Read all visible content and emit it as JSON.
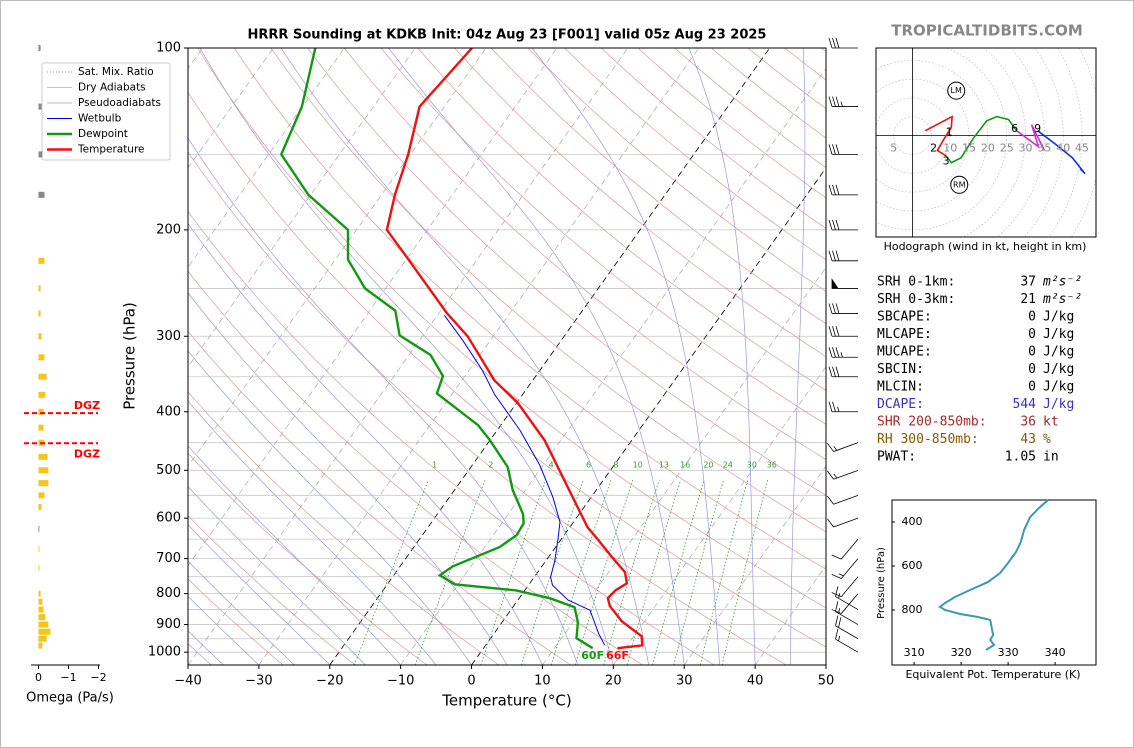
{
  "watermark": "TROPICALTIDBITS.COM",
  "stats": [
    {
      "label": "SRH 0-1km:",
      "value": 37,
      "unit": "m²s⁻²",
      "color": "#000000"
    },
    {
      "label": "SRH 0-3km:",
      "value": 21,
      "unit": "m²s⁻²",
      "color": "#000000"
    },
    {
      "label": "SBCAPE:",
      "value": 0,
      "unit": "J/kg",
      "color": "#000000"
    },
    {
      "label": "MLCAPE:",
      "value": 0,
      "unit": "J/kg",
      "color": "#000000"
    },
    {
      "label": "MUCAPE:",
      "value": 0,
      "unit": "J/kg",
      "color": "#000000"
    },
    {
      "label": "SBCIN:",
      "value": 0,
      "unit": "J/kg",
      "color": "#000000"
    },
    {
      "label": "MLCIN:",
      "value": 0,
      "unit": "J/kg",
      "color": "#000000"
    },
    {
      "label": "DCAPE:",
      "value": 544,
      "unit": "J/kg",
      "color": "#3333cc"
    },
    {
      "label": "SHR 200-850mb:",
      "value": 36,
      "unit": "kt",
      "color": "#a52a2a"
    },
    {
      "label": "RH 300-850mb:",
      "value": 43,
      "unit": "%",
      "color": "#8b5a00"
    },
    {
      "label": "PWAT:",
      "value": 1.05,
      "unit": "in",
      "color": "#000000"
    }
  ],
  "chart_data": [
    {
      "type": "skewt",
      "title": "HRRR Sounding at KDKB Init: 04z Aug 23 [F001] valid 05z Aug 23 2025",
      "xlabel": "Temperature (°C)",
      "ylabel": "Pressure (hPa)",
      "xlim": [
        -40,
        50
      ],
      "ylim": [
        1050,
        100
      ],
      "log_y": true,
      "legend": "upper left",
      "xticks": [
        {
          "value": -40,
          "label": "−40"
        },
        {
          "value": -30,
          "label": "−30"
        },
        {
          "value": -20,
          "label": "−20"
        },
        {
          "value": -10,
          "label": "−10"
        },
        0,
        10,
        20,
        30,
        40,
        50
      ],
      "yticks": [
        100,
        200,
        300,
        400,
        500,
        600,
        700,
        800,
        900,
        1000
      ],
      "y_minor_ticks": [
        150,
        250,
        350,
        450,
        550,
        650,
        750,
        850,
        950
      ],
      "highlighted_isotherms": [
        -20,
        0
      ],
      "reference_lines": [
        {
          "name": "Sat. Mix. Ratio",
          "color": "#3a9a3a",
          "values": [
            1,
            2,
            4,
            6,
            8,
            10,
            13,
            16,
            20,
            24,
            30,
            36
          ]
        },
        {
          "name": "Dry Adiabats",
          "color": "#d99a9a"
        },
        {
          "name": "Pseudoadiabats",
          "color": "#9a9ad9"
        }
      ],
      "series": [
        {
          "name": "Wetbulb",
          "color": "#0000ee",
          "pressure": [
            974,
            930,
            852,
            820,
            775,
            751,
            704,
            652,
            609,
            554,
            490,
            429,
            375,
            341,
            304,
            277
          ],
          "values": [
            16.8,
            14.7,
            11.2,
            7.1,
            3.4,
            2.3,
            1.2,
            -0.4,
            -1.9,
            -5.4,
            -10.5,
            -16.8,
            -23.9,
            -28.2,
            -34.0,
            -39.0
          ]
        },
        {
          "name": "Dewpoint",
          "color": "#119911",
          "surface_label": "60F",
          "pressure": [
            985,
            948,
            892,
            842,
            814,
            790,
            772,
            746,
            721,
            670,
            640,
            612,
            591,
            539,
            494,
            446,
            421,
            373,
            349,
            322,
            299,
            272,
            250,
            224,
            200,
            175,
            150,
            125,
            100
          ],
          "values": [
            15.4,
            12.1,
            10.7,
            8.7,
            4.3,
            -1.3,
            -10.5,
            -13.5,
            -12.6,
            -7.9,
            -6.7,
            -6.9,
            -7.9,
            -11.8,
            -14.8,
            -20.0,
            -23.2,
            -32.2,
            -33.1,
            -37.0,
            -43.3,
            -46.4,
            -52.9,
            -58.2,
            -61.2,
            -70.3,
            -78.2,
            -80.1,
            -84.1
          ]
        },
        {
          "name": "Temperature",
          "color": "#ee1111",
          "surface_label": "66F",
          "pressure": [
            985,
            974,
            941,
            889,
            839,
            814,
            790,
            769,
            737,
            699,
            652,
            621,
            446,
            387,
            355,
            329,
            300,
            274,
            223,
            200,
            175,
            150,
            125,
            100
          ],
          "values": [
            18.9,
            22.1,
            21.1,
            16.8,
            13.6,
            12.5,
            12.8,
            13.7,
            12.3,
            9.2,
            5.3,
            2.5,
            -12.3,
            -19.8,
            -25.4,
            -29.1,
            -33.6,
            -39.0,
            -49.9,
            -55.7,
            -58.1,
            -60.3,
            -63.5,
            -62.0
          ]
        }
      ],
      "wind_barbs": {
        "pressure": [
          100,
          125,
          150,
          175,
          200,
          225,
          250,
          275,
          300,
          325,
          350,
          400,
          450,
          500,
          550,
          600,
          650,
          700,
          750,
          800,
          850,
          900,
          950,
          1000
        ],
        "speed": [
          30,
          35,
          30,
          30,
          30,
          30,
          50,
          30,
          30,
          35,
          30,
          25,
          15,
          15,
          10,
          10,
          10,
          15,
          10,
          10,
          15,
          15,
          20,
          15
        ],
        "direction": [
          270,
          270,
          270,
          270,
          270,
          270,
          270,
          270,
          270,
          270,
          270,
          270,
          250,
          250,
          250,
          250,
          220,
          220,
          220,
          220,
          300,
          300,
          300,
          300
        ]
      }
    },
    {
      "type": "hbar",
      "xlabel": "Omega (Pa/s)",
      "xlim": [
        0.25,
        -2.05
      ],
      "ylim": [
        1050,
        100
      ],
      "xticks": [
        0,
        {
          "value": -1,
          "label": "−1"
        },
        {
          "value": -2,
          "label": "−2"
        }
      ],
      "pressure": [
        100,
        125,
        150,
        175,
        225,
        250,
        275,
        300,
        325,
        350,
        375,
        400,
        425,
        450,
        475,
        500,
        525,
        550,
        575,
        625,
        675,
        725,
        800,
        825,
        850,
        875,
        900,
        925,
        950,
        975
      ],
      "values": [
        -0.07,
        -0.1,
        -0.13,
        -0.2,
        -0.2,
        -0.07,
        -0.07,
        -0.1,
        -0.2,
        -0.27,
        -0.23,
        -0.17,
        -0.17,
        -0.2,
        -0.3,
        -0.33,
        -0.33,
        -0.2,
        -0.1,
        -0.03,
        -0.03,
        -0.03,
        -0.07,
        -0.13,
        -0.17,
        -0.23,
        -0.33,
        -0.4,
        -0.27,
        -0.13
      ],
      "colors": [
        "#888888",
        "#888888",
        "#888888",
        "#888888",
        "#f5c518",
        "#f5c518",
        "#f5c518",
        "#f5c518",
        "#f5c518",
        "#f5c518",
        "#f5c518",
        "#f5c518",
        "#f5c518",
        "#f5c518",
        "#f5c518",
        "#f5c518",
        "#f5c518",
        "#f5c518",
        "#f5c518",
        "#888888",
        "#f5c518",
        "#f5c518",
        "#f5c518",
        "#f5c518",
        "#f5c518",
        "#f5c518",
        "#f5c518",
        "#f5c518",
        "#f5c518",
        "#f5c518"
      ],
      "dgz": {
        "pressure": [
          402,
          451
        ],
        "labels": [
          "DGZ",
          "DGZ"
        ],
        "color": "#ff0000"
      }
    },
    {
      "type": "hodograph",
      "caption": "Hodograph (wind in kt, height in km)",
      "xlim": [
        -9.7,
        48.7
      ],
      "ylim": [
        -26.6,
        23
      ],
      "rings": [
        5,
        10,
        15,
        20,
        25,
        30,
        35,
        40,
        45
      ],
      "segments": [
        {
          "color": "#ee1111",
          "u": [
            3.4,
            10.5,
            10.3,
            8.4,
            6.6,
            8.9
          ],
          "v": [
            1.3,
            5.0,
            2.1,
            -0.8,
            -3.9,
            -5.3
          ]
        },
        {
          "color": "#119911",
          "u": [
            8.9,
            10.3,
            12.9,
            16.3,
            19.7,
            22.4,
            25.5,
            27.6
          ],
          "v": [
            -5.3,
            -7.1,
            -5.8,
            -0.5,
            3.9,
            5.0,
            4.2,
            1.3
          ]
        },
        {
          "color": "#cc33cc",
          "u": [
            27.6,
            33.4,
            31.6,
            35.0
          ],
          "v": [
            1.3,
            -2.9,
            2.9,
            -3.9
          ]
        },
        {
          "color": "#1133ee",
          "u": [
            33.2,
            38.4,
            42.4,
            45.8,
            44.5
          ],
          "v": [
            1.3,
            -2.6,
            -5.8,
            -10.0,
            -8.7
          ]
        }
      ],
      "height_markers": [
        {
          "label": "1",
          "u": 9.7,
          "v": 0.8
        },
        {
          "label": "2",
          "u": 5.6,
          "v": -3.4
        },
        {
          "label": "3",
          "u": 8.9,
          "v": -6.8
        },
        {
          "label": "6",
          "u": 27.1,
          "v": 1.8
        },
        {
          "label": "9",
          "u": 33.2,
          "v": 1.8
        }
      ],
      "storm_motions": [
        {
          "label": "LM",
          "u": 11.6,
          "v": 11.8
        },
        {
          "label": "RM",
          "u": 12.4,
          "v": -12.9
        }
      ]
    },
    {
      "type": "line",
      "xlabel": "Equivalent Pot. Temperature (K)",
      "ylabel": "Pressure (hPa)",
      "xlim": [
        305.3,
        348.7
      ],
      "ylim": [
        1050,
        300
      ],
      "xticks": [
        310,
        320,
        330,
        340
      ],
      "yticks": [
        400,
        600,
        800
      ],
      "series": [
        {
          "color": "#3a9bb0",
          "pressure": [
            300,
            332,
            377,
            436,
            491,
            536,
            586,
            632,
            673,
            709,
            741,
            768,
            786,
            800,
            818,
            832,
            845,
            914,
            936,
            959,
            982
          ],
          "values": [
            338.5,
            336.8,
            334.7,
            333.4,
            332.7,
            331.7,
            330.0,
            328.3,
            325.7,
            321.9,
            318.7,
            316.6,
            315.5,
            316.6,
            319.8,
            323.6,
            326.2,
            326.8,
            326.2,
            327.0,
            325.3
          ]
        }
      ]
    }
  ]
}
